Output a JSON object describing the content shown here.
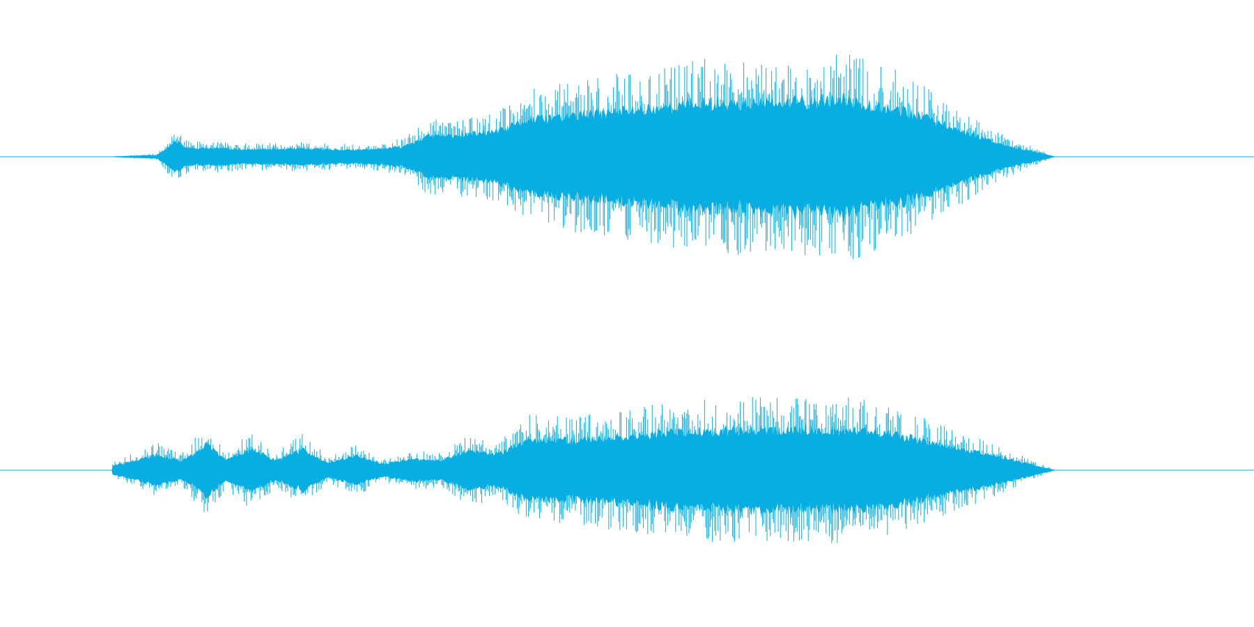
{
  "waveform": {
    "color": "#08aee2",
    "background": "#ffffff",
    "channels": [
      {
        "name": "",
        "silent_before_fraction": 0.09,
        "end_fraction": 0.842,
        "envelope": [
          [
            0.09,
            0.005
          ],
          [
            0.125,
            0.03
          ],
          [
            0.14,
            0.25
          ],
          [
            0.15,
            0.14
          ],
          [
            0.175,
            0.14
          ],
          [
            0.2,
            0.12
          ],
          [
            0.24,
            0.13
          ],
          [
            0.29,
            0.11
          ],
          [
            0.32,
            0.16
          ],
          [
            0.34,
            0.33
          ],
          [
            0.38,
            0.38
          ],
          [
            0.4,
            0.43
          ],
          [
            0.42,
            0.6
          ],
          [
            0.5,
            0.76
          ],
          [
            0.56,
            0.88
          ],
          [
            0.62,
            0.88
          ],
          [
            0.68,
            0.93
          ],
          [
            0.72,
            0.76
          ],
          [
            0.76,
            0.48
          ],
          [
            0.8,
            0.2
          ],
          [
            0.842,
            0.0
          ]
        ]
      },
      {
        "name": "",
        "silent_before_fraction": 0.089,
        "end_fraction": 0.842,
        "envelope": [
          [
            0.089,
            0.08
          ],
          [
            0.11,
            0.2
          ],
          [
            0.125,
            0.3
          ],
          [
            0.145,
            0.18
          ],
          [
            0.165,
            0.5
          ],
          [
            0.18,
            0.2
          ],
          [
            0.2,
            0.42
          ],
          [
            0.22,
            0.19
          ],
          [
            0.242,
            0.4
          ],
          [
            0.262,
            0.15
          ],
          [
            0.285,
            0.28
          ],
          [
            0.305,
            0.12
          ],
          [
            0.33,
            0.22
          ],
          [
            0.35,
            0.18
          ],
          [
            0.37,
            0.36
          ],
          [
            0.4,
            0.33
          ],
          [
            0.42,
            0.6
          ],
          [
            0.46,
            0.58
          ],
          [
            0.52,
            0.7
          ],
          [
            0.58,
            0.78
          ],
          [
            0.65,
            0.8
          ],
          [
            0.7,
            0.76
          ],
          [
            0.74,
            0.55
          ],
          [
            0.79,
            0.3
          ],
          [
            0.842,
            0.0
          ]
        ]
      }
    ]
  }
}
